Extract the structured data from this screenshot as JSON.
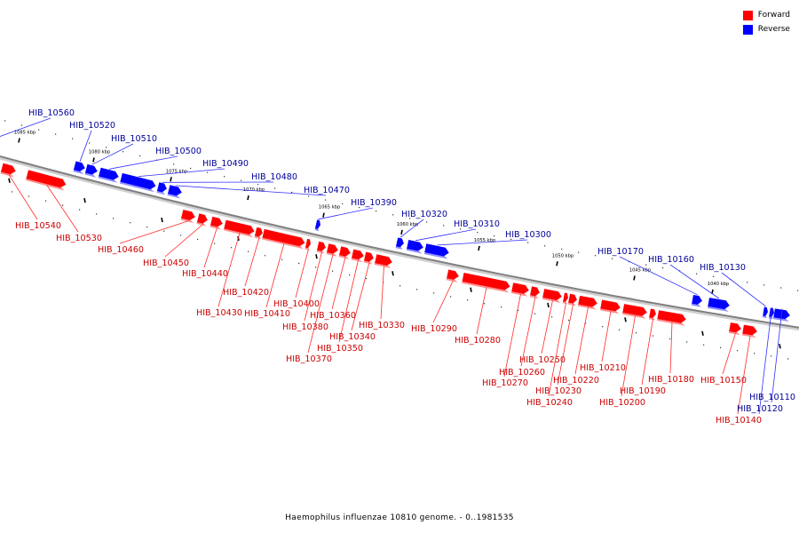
{
  "legend": [
    {
      "label": "Forward",
      "color": "#ff0000"
    },
    {
      "label": "Reverse",
      "color": "#0000ff"
    }
  ],
  "caption": "Haemophilus influenzae 10810 genome. - 0..1981535",
  "colors": {
    "forward": "#ff0000",
    "reverse": "#0000ff",
    "forward_label": "#cc0000",
    "reverse_label": "#000099",
    "axis": "#808080"
  },
  "scale_labels": [
    "1085 kbp",
    "1080 kbp",
    "1075 kbp",
    "1070 kbp",
    "1065 kbp",
    "1060 kbp",
    "1055 kbp",
    "1050 kbp",
    "1045 kbp",
    "1040 kbp"
  ],
  "genes": [
    {
      "name": "HIB_10560",
      "strand": "reverse"
    },
    {
      "name": "HIB_10540",
      "strand": "forward"
    },
    {
      "name": "HIB_10530",
      "strand": "forward"
    },
    {
      "name": "HIB_10520",
      "strand": "reverse"
    },
    {
      "name": "HIB_10510",
      "strand": "reverse"
    },
    {
      "name": "HIB_10500",
      "strand": "reverse"
    },
    {
      "name": "HIB_10490",
      "strand": "reverse"
    },
    {
      "name": "HIB_10480",
      "strand": "reverse"
    },
    {
      "name": "HIB_10470",
      "strand": "reverse"
    },
    {
      "name": "HIB_10460",
      "strand": "forward"
    },
    {
      "name": "HIB_10450",
      "strand": "forward"
    },
    {
      "name": "HIB_10440",
      "strand": "forward"
    },
    {
      "name": "HIB_10430",
      "strand": "forward"
    },
    {
      "name": "HIB_10420",
      "strand": "forward"
    },
    {
      "name": "HIB_10410",
      "strand": "forward"
    },
    {
      "name": "HIB_10400",
      "strand": "forward"
    },
    {
      "name": "HIB_10390",
      "strand": "reverse"
    },
    {
      "name": "HIB_10380",
      "strand": "forward"
    },
    {
      "name": "HIB_10370",
      "strand": "forward"
    },
    {
      "name": "HIB_10360",
      "strand": "forward"
    },
    {
      "name": "HIB_10350",
      "strand": "forward"
    },
    {
      "name": "HIB_10340",
      "strand": "forward"
    },
    {
      "name": "HIB_10330",
      "strand": "forward"
    },
    {
      "name": "HIB_10320",
      "strand": "reverse"
    },
    {
      "name": "HIB_10310",
      "strand": "reverse"
    },
    {
      "name": "HIB_10300",
      "strand": "reverse"
    },
    {
      "name": "HIB_10290",
      "strand": "forward"
    },
    {
      "name": "HIB_10280",
      "strand": "forward"
    },
    {
      "name": "HIB_10270",
      "strand": "forward"
    },
    {
      "name": "HIB_10260",
      "strand": "forward"
    },
    {
      "name": "HIB_10250",
      "strand": "forward"
    },
    {
      "name": "HIB_10240",
      "strand": "forward"
    },
    {
      "name": "HIB_10230",
      "strand": "forward"
    },
    {
      "name": "HIB_10220",
      "strand": "forward"
    },
    {
      "name": "HIB_10210",
      "strand": "forward"
    },
    {
      "name": "HIB_10200",
      "strand": "forward"
    },
    {
      "name": "HIB_10190",
      "strand": "forward"
    },
    {
      "name": "HIB_10180",
      "strand": "forward"
    },
    {
      "name": "HIB_10170",
      "strand": "reverse"
    },
    {
      "name": "HIB_10160",
      "strand": "reverse"
    },
    {
      "name": "HIB_10150",
      "strand": "forward"
    },
    {
      "name": "HIB_10140",
      "strand": "forward"
    },
    {
      "name": "HIB_10130",
      "strand": "reverse"
    },
    {
      "name": "HIB_10120",
      "strand": "reverse"
    },
    {
      "name": "HIB_10110",
      "strand": "reverse"
    }
  ]
}
